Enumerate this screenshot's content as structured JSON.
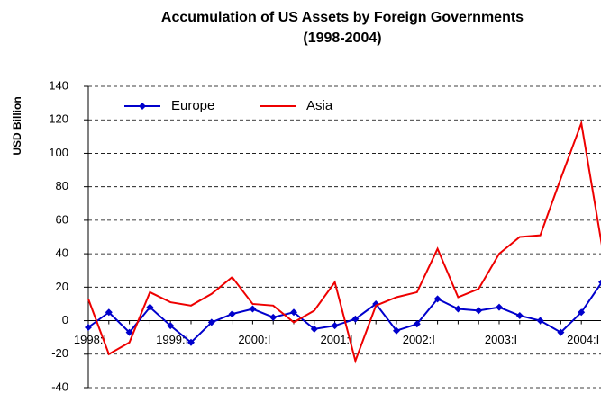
{
  "chart_data": {
    "type": "line",
    "title": [
      "Accumulation of US Assets by Foreign Governments",
      "(1998-2004)"
    ],
    "y_label": "USD Billion",
    "categories": [
      "1998:I",
      null,
      null,
      null,
      "1999:I",
      null,
      null,
      null,
      "2000:I",
      null,
      null,
      null,
      "2001:I",
      null,
      null,
      null,
      "2002:I",
      null,
      null,
      null,
      "2003:I",
      null,
      null,
      null,
      "2004:I",
      null
    ],
    "series": [
      {
        "name": "Europe",
        "color": "#0000cc",
        "marker": "diamond",
        "values": [
          -4,
          5,
          -7,
          8,
          -3,
          -13,
          -1,
          4,
          7,
          2,
          5,
          -5,
          -3,
          1,
          10,
          -6,
          -2,
          13,
          7,
          6,
          8,
          3,
          0,
          -7,
          5,
          23
        ]
      },
      {
        "name": "Asia",
        "color": "#ee0000",
        "marker": null,
        "values": [
          13,
          -20,
          -13,
          17,
          11,
          9,
          16,
          26,
          10,
          9,
          -1,
          6,
          23,
          -24,
          9,
          14,
          17,
          43,
          14,
          19,
          40,
          50,
          51,
          85,
          118,
          45
        ]
      }
    ],
    "ylim": [
      -40,
      140
    ],
    "yticks": [
      -40,
      -20,
      0,
      20,
      40,
      60,
      80,
      100,
      120,
      140
    ],
    "grid": true,
    "legend": "top-left"
  }
}
